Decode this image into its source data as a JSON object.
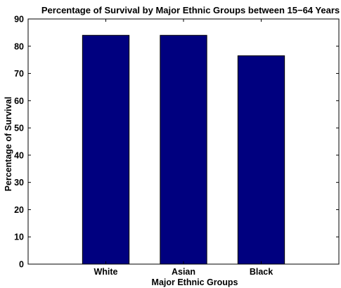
{
  "chart_data": {
    "type": "bar",
    "title": "Percentage of Survival by Major Ethnic Groups between 15−64 Years",
    "xlabel": "Major Ethnic Groups",
    "ylabel": "Percentage of Survival",
    "categories": [
      "White",
      "Asian",
      "Black"
    ],
    "values": [
      84,
      84,
      76.5
    ],
    "ylim": [
      0,
      90
    ],
    "yticks": [
      "0",
      "10",
      "20",
      "30",
      "40",
      "50",
      "60",
      "70",
      "80",
      "90"
    ],
    "grid": false,
    "bar_color": "#00007f"
  }
}
